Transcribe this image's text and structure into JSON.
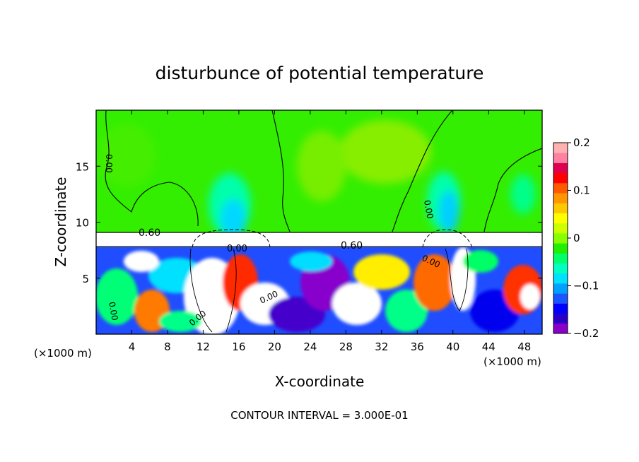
{
  "chart_data": {
    "type": "heatmap",
    "title": "disturbunce of potential temperature",
    "xlabel": "X-coordinate",
    "ylabel": "Z-coordinate",
    "x_unit": "(×1000 m)",
    "x_unit_right": "(×1000 m)",
    "xlim": [
      0,
      50
    ],
    "ylim": [
      0,
      20
    ],
    "x_ticks": [
      4,
      8,
      12,
      16,
      20,
      24,
      28,
      32,
      36,
      40,
      44,
      48
    ],
    "y_ticks": [
      5,
      10,
      15
    ],
    "colorbar": {
      "min": -0.2,
      "max": 0.2,
      "tick_values": [
        0.2,
        0.1,
        0,
        -0.1,
        -0.2
      ],
      "tick_labels": [
        "0.2",
        "0.1",
        "0",
        "−0.1",
        "−0.2"
      ],
      "colors": [
        "#8a00c8",
        "#2a00c8",
        "#0000ff",
        "#1a55ff",
        "#00a0ff",
        "#00e0ff",
        "#00ffc0",
        "#00ff6a",
        "#22ee00",
        "#88ff00",
        "#ccff00",
        "#ffff00",
        "#ffc800",
        "#ff9600",
        "#ff5a00",
        "#ff0000",
        "#e00050",
        "#ff80a0",
        "#ffb0b0"
      ]
    },
    "contour_labels": [
      "0.60",
      "0.00",
      "0.60",
      "0.00",
      "0.00",
      "0.00",
      "0.00",
      "0.00",
      "0.00"
    ],
    "footer": "CONTOUR INTERVAL = 3.000E-01",
    "levels": {
      "upper_mean": 0.03,
      "saturated_band": [
        8,
        9.2
      ],
      "lower_turbulent": [
        0,
        8
      ]
    }
  }
}
